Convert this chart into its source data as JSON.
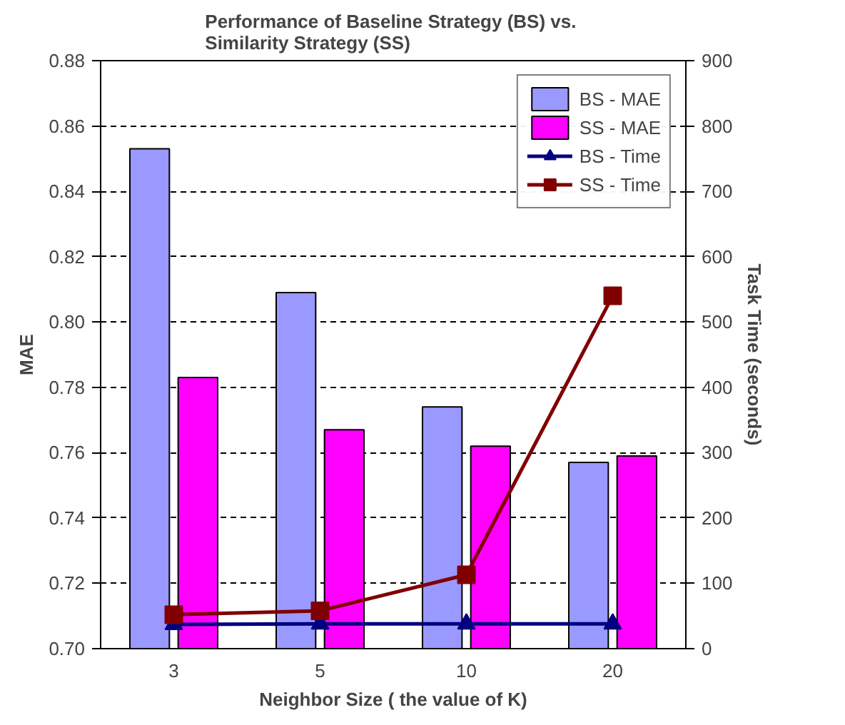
{
  "chart_data": {
    "type": "bar",
    "title": "Performance of Baseline Strategy (BS)  vs.\nSimilarity Strategy (SS)",
    "xlabel": "Neighbor Size ( the value of K)",
    "ylabel": "MAE",
    "y2label": "Task Time (seconds)",
    "categories": [
      "3",
      "5",
      "10",
      "20"
    ],
    "series": [
      {
        "name": "BS - MAE",
        "color": "#9999ff",
        "values": [
          0.853,
          0.809,
          0.774,
          0.757
        ]
      },
      {
        "name": "SS - MAE",
        "color": "#ff00ff",
        "values": [
          0.783,
          0.767,
          0.762,
          0.759
        ]
      },
      {
        "name": "BS - Time",
        "type": "line",
        "axis": "y2",
        "marker": "triangle",
        "color": "#000080",
        "values": [
          37,
          38,
          38,
          38
        ]
      },
      {
        "name": "SS - Time",
        "type": "line",
        "axis": "y2",
        "marker": "square",
        "color": "#800000",
        "values": [
          52,
          58,
          113,
          540
        ]
      }
    ],
    "ylim": [
      0.7,
      0.88
    ],
    "yticks": [
      {
        "value": 0.7,
        "label": "0.70"
      },
      0.72,
      0.74,
      0.76,
      0.78,
      {
        "value": 0.8,
        "label": "0.80"
      },
      0.82,
      0.84,
      0.86,
      0.88
    ],
    "y2lim": [
      0,
      900
    ],
    "y2ticks": [
      0,
      100,
      200,
      300,
      400,
      500,
      600,
      700,
      800,
      900
    ],
    "grid": "y",
    "legend": "top right"
  }
}
